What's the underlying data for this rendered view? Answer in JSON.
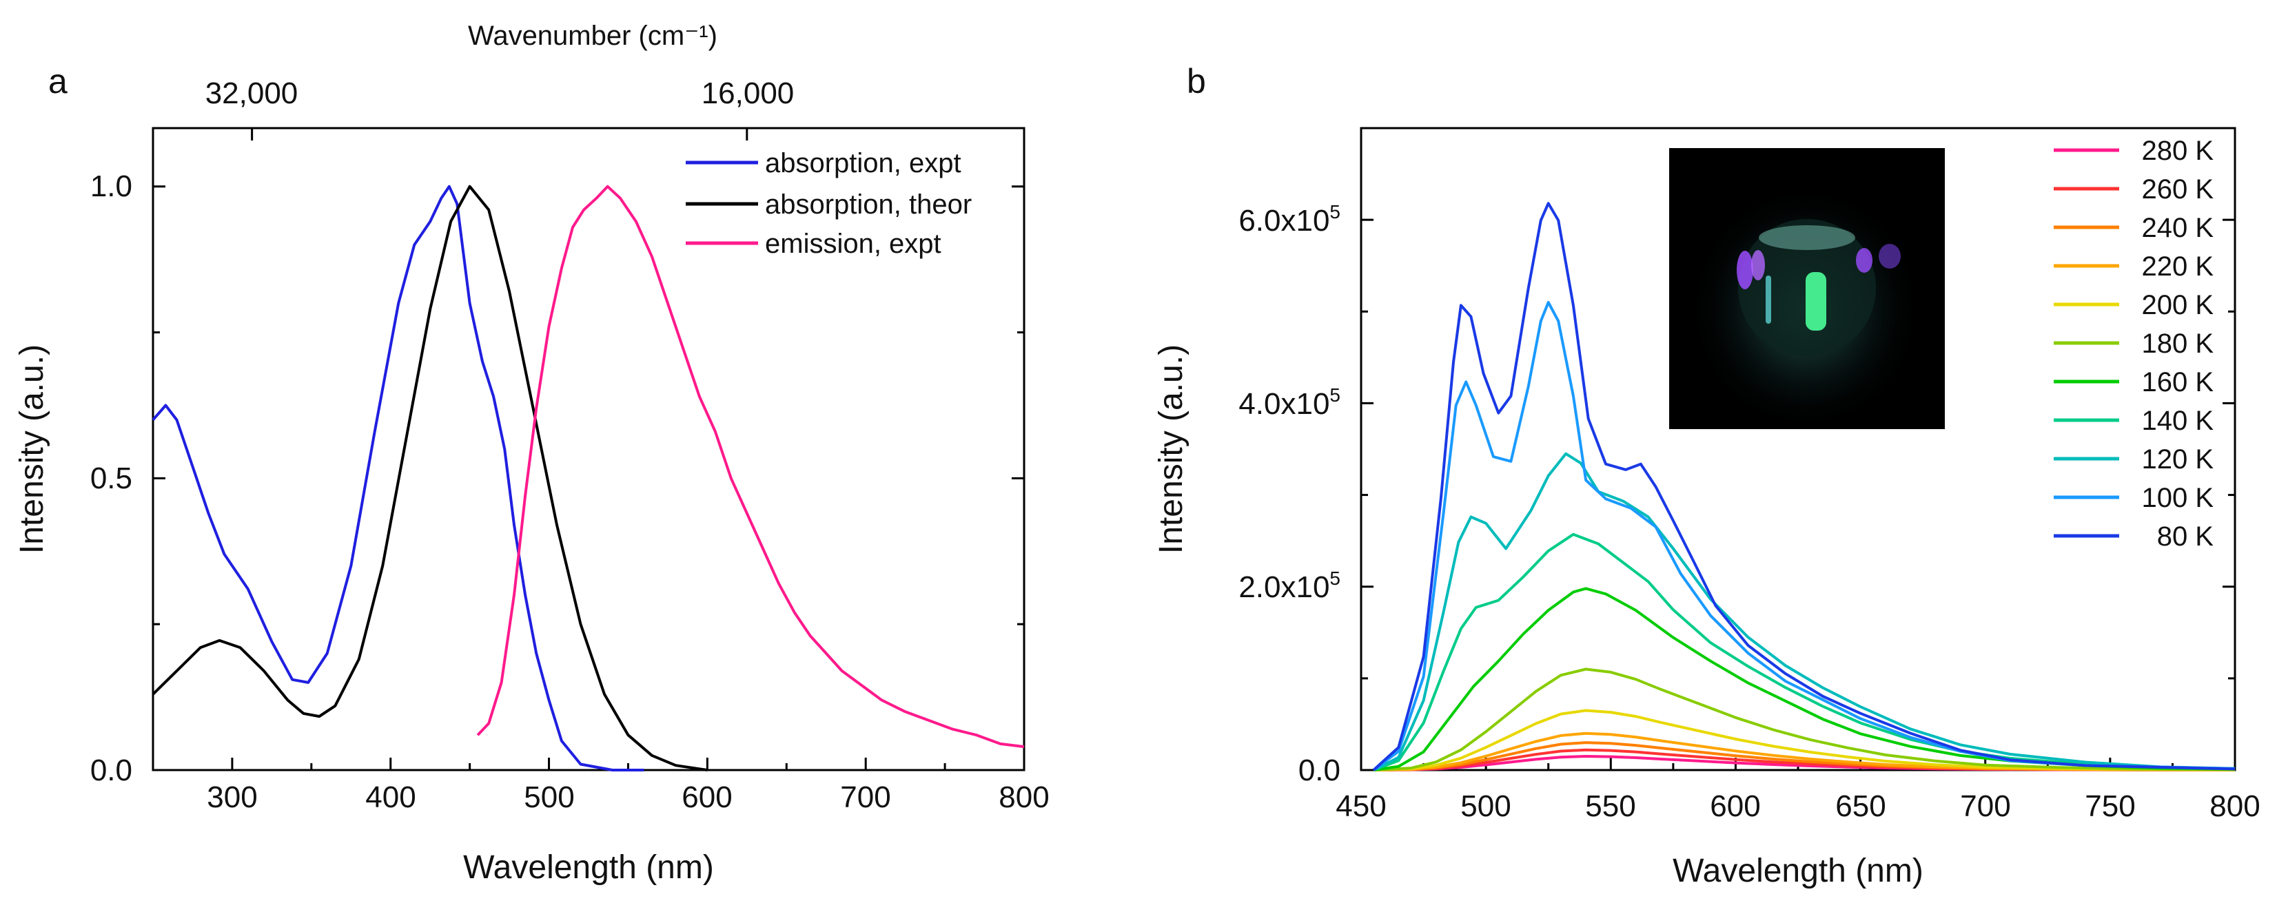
{
  "chart_data": [
    {
      "type": "line",
      "panel_label": "a",
      "xlabel": "Wavelength (nm)",
      "ylabel": "Intensity (a.u.)",
      "xlim": [
        250,
        800
      ],
      "ylim": [
        0,
        1.1
      ],
      "x_ticks": [
        300,
        400,
        500,
        600,
        700,
        800
      ],
      "x_tick_labels": [
        "300",
        "400",
        "500",
        "600",
        "700",
        "800"
      ],
      "y_ticks": [
        0,
        0.5,
        1.0
      ],
      "y_tick_labels": [
        "0.0",
        "0.5",
        "1.0"
      ],
      "top_axis": {
        "title": "Wavenumber (cm⁻¹)",
        "ticks": [
          {
            "label": "32,000",
            "at_wavelength": 312.5
          },
          {
            "label": "16,000",
            "at_wavelength": 625
          }
        ]
      },
      "legend_position": "top-right",
      "series": [
        {
          "name": "absorption, expt",
          "color": "#1f1fe0",
          "points": [
            [
              250,
              0.6
            ],
            [
              258,
              0.625
            ],
            [
              265,
              0.6
            ],
            [
              275,
              0.52
            ],
            [
              285,
              0.44
            ],
            [
              295,
              0.37
            ],
            [
              310,
              0.31
            ],
            [
              325,
              0.22
            ],
            [
              338,
              0.155
            ],
            [
              348,
              0.15
            ],
            [
              360,
              0.2
            ],
            [
              375,
              0.35
            ],
            [
              390,
              0.58
            ],
            [
              405,
              0.8
            ],
            [
              415,
              0.9
            ],
            [
              425,
              0.94
            ],
            [
              432,
              0.98
            ],
            [
              437,
              1.0
            ],
            [
              442,
              0.97
            ],
            [
              450,
              0.8
            ],
            [
              458,
              0.7
            ],
            [
              465,
              0.64
            ],
            [
              472,
              0.55
            ],
            [
              478,
              0.42
            ],
            [
              485,
              0.3
            ],
            [
              492,
              0.2
            ],
            [
              500,
              0.12
            ],
            [
              508,
              0.05
            ],
            [
              520,
              0.01
            ],
            [
              540,
              0.0
            ],
            [
              560,
              0.0
            ]
          ]
        },
        {
          "name": "absorption, theor",
          "color": "#000000",
          "points": [
            [
              250,
              0.13
            ],
            [
              265,
              0.17
            ],
            [
              280,
              0.21
            ],
            [
              292,
              0.222
            ],
            [
              305,
              0.21
            ],
            [
              320,
              0.17
            ],
            [
              335,
              0.12
            ],
            [
              345,
              0.097
            ],
            [
              355,
              0.092
            ],
            [
              365,
              0.11
            ],
            [
              380,
              0.19
            ],
            [
              395,
              0.35
            ],
            [
              410,
              0.57
            ],
            [
              425,
              0.79
            ],
            [
              438,
              0.94
            ],
            [
              450,
              1.0
            ],
            [
              462,
              0.96
            ],
            [
              475,
              0.82
            ],
            [
              490,
              0.62
            ],
            [
              505,
              0.42
            ],
            [
              520,
              0.25
            ],
            [
              535,
              0.13
            ],
            [
              550,
              0.06
            ],
            [
              565,
              0.025
            ],
            [
              580,
              0.008
            ],
            [
              600,
              0.0
            ]
          ]
        },
        {
          "name": "emission, expt",
          "color": "#ff1a8c",
          "points": [
            [
              455,
              0.06
            ],
            [
              462,
              0.08
            ],
            [
              470,
              0.15
            ],
            [
              478,
              0.3
            ],
            [
              485,
              0.47
            ],
            [
              492,
              0.62
            ],
            [
              500,
              0.76
            ],
            [
              508,
              0.86
            ],
            [
              515,
              0.93
            ],
            [
              522,
              0.96
            ],
            [
              530,
              0.98
            ],
            [
              537,
              1.0
            ],
            [
              545,
              0.98
            ],
            [
              555,
              0.94
            ],
            [
              565,
              0.88
            ],
            [
              575,
              0.8
            ],
            [
              585,
              0.72
            ],
            [
              595,
              0.64
            ],
            [
              605,
              0.58
            ],
            [
              615,
              0.5
            ],
            [
              625,
              0.44
            ],
            [
              635,
              0.38
            ],
            [
              645,
              0.32
            ],
            [
              655,
              0.27
            ],
            [
              665,
              0.23
            ],
            [
              675,
              0.2
            ],
            [
              685,
              0.17
            ],
            [
              695,
              0.15
            ],
            [
              710,
              0.12
            ],
            [
              725,
              0.1
            ],
            [
              740,
              0.085
            ],
            [
              755,
              0.07
            ],
            [
              770,
              0.06
            ],
            [
              785,
              0.045
            ],
            [
              800,
              0.04
            ]
          ]
        }
      ]
    },
    {
      "type": "line",
      "panel_label": "b",
      "xlabel": "Wavelength (nm)",
      "ylabel": "Intensity (a.u.)",
      "xlim": [
        450,
        800
      ],
      "ylim": [
        0,
        700000
      ],
      "x_ticks": [
        450,
        500,
        550,
        600,
        650,
        700,
        750,
        800
      ],
      "x_tick_labels": [
        "450",
        "500",
        "550",
        "600",
        "650",
        "700",
        "750",
        "800"
      ],
      "y_ticks": [
        0,
        200000,
        400000,
        600000
      ],
      "y_tick_labels": [
        {
          "mantissa": "0.0",
          "exp": ""
        },
        {
          "mantissa": "2.0x10",
          "exp": "5"
        },
        {
          "mantissa": "4.0x10",
          "exp": "5"
        },
        {
          "mantissa": "6.0x10",
          "exp": "5"
        }
      ],
      "inset": "photo of glowing sample",
      "legend_position": "top-right",
      "series": [
        {
          "name": "280 K",
          "color": "#ff1a8c",
          "profile": "broad",
          "peak": 15000
        },
        {
          "name": "260 K",
          "color": "#ff3333",
          "profile": "broad",
          "peak": 22000
        },
        {
          "name": "240 K",
          "color": "#ff8000",
          "profile": "broad",
          "peak": 30000
        },
        {
          "name": "220 K",
          "color": "#ffa500",
          "profile": "broad",
          "peak": 40000
        },
        {
          "name": "200 K",
          "color": "#e8d800",
          "profile": "broad",
          "peak": 65000
        },
        {
          "name": "180 K",
          "color": "#88cc00",
          "profile": "broad",
          "peak": 110000
        },
        {
          "name": "160 K",
          "color": "#00cc00",
          "profile": "t160",
          "peak": 198000
        },
        {
          "name": "140 K",
          "color": "#00cc88",
          "profile": "t140",
          "peak": 257000
        },
        {
          "name": "120 K",
          "color": "#00bbbb",
          "profile": "t120",
          "peak": 345000
        },
        {
          "name": "100 K",
          "color": "#1a9aff",
          "profile": "t100",
          "peak": 510000
        },
        {
          "name": "80 K",
          "color": "#1a3ae6",
          "profile": "t80",
          "peak": 618000
        }
      ],
      "profiles": {
        "broad": [
          [
            455,
            0
          ],
          [
            470,
            0.02
          ],
          [
            480,
            0.08
          ],
          [
            490,
            0.2
          ],
          [
            500,
            0.38
          ],
          [
            510,
            0.58
          ],
          [
            520,
            0.78
          ],
          [
            530,
            0.94
          ],
          [
            540,
            1.0
          ],
          [
            550,
            0.97
          ],
          [
            560,
            0.9
          ],
          [
            570,
            0.8
          ],
          [
            585,
            0.66
          ],
          [
            600,
            0.52
          ],
          [
            615,
            0.4
          ],
          [
            630,
            0.3
          ],
          [
            645,
            0.22
          ],
          [
            660,
            0.15
          ],
          [
            680,
            0.09
          ],
          [
            700,
            0.05
          ],
          [
            730,
            0.025
          ],
          [
            760,
            0.01
          ],
          [
            800,
            0.005
          ]
        ],
        "t160": [
          [
            455,
            0
          ],
          [
            465,
            0.02
          ],
          [
            475,
            0.1
          ],
          [
            485,
            0.28
          ],
          [
            495,
            0.46
          ],
          [
            505,
            0.6
          ],
          [
            515,
            0.75
          ],
          [
            525,
            0.88
          ],
          [
            535,
            0.98
          ],
          [
            540,
            1.0
          ],
          [
            548,
            0.97
          ],
          [
            560,
            0.88
          ],
          [
            575,
            0.73
          ],
          [
            590,
            0.6
          ],
          [
            605,
            0.48
          ],
          [
            620,
            0.38
          ],
          [
            635,
            0.28
          ],
          [
            650,
            0.2
          ],
          [
            670,
            0.13
          ],
          [
            690,
            0.08
          ],
          [
            710,
            0.05
          ],
          [
            740,
            0.025
          ],
          [
            770,
            0.01
          ],
          [
            800,
            0.005
          ]
        ],
        "t140": [
          [
            455,
            0
          ],
          [
            465,
            0.04
          ],
          [
            475,
            0.2
          ],
          [
            483,
            0.42
          ],
          [
            490,
            0.6
          ],
          [
            496,
            0.69
          ],
          [
            505,
            0.72
          ],
          [
            515,
            0.82
          ],
          [
            525,
            0.93
          ],
          [
            535,
            1.0
          ],
          [
            545,
            0.96
          ],
          [
            555,
            0.88
          ],
          [
            565,
            0.8
          ],
          [
            575,
            0.68
          ],
          [
            590,
            0.54
          ],
          [
            605,
            0.44
          ],
          [
            620,
            0.35
          ],
          [
            635,
            0.27
          ],
          [
            650,
            0.2
          ],
          [
            670,
            0.13
          ],
          [
            690,
            0.08
          ],
          [
            710,
            0.05
          ],
          [
            740,
            0.025
          ],
          [
            770,
            0.012
          ],
          [
            800,
            0.006
          ]
        ],
        "t120": [
          [
            455,
            0
          ],
          [
            465,
            0.04
          ],
          [
            475,
            0.22
          ],
          [
            483,
            0.5
          ],
          [
            489,
            0.72
          ],
          [
            494,
            0.8
          ],
          [
            500,
            0.78
          ],
          [
            508,
            0.7
          ],
          [
            518,
            0.82
          ],
          [
            525,
            0.93
          ],
          [
            532,
            1.0
          ],
          [
            538,
            0.97
          ],
          [
            545,
            0.88
          ],
          [
            555,
            0.85
          ],
          [
            565,
            0.8
          ],
          [
            575,
            0.7
          ],
          [
            590,
            0.54
          ],
          [
            605,
            0.42
          ],
          [
            620,
            0.33
          ],
          [
            635,
            0.26
          ],
          [
            650,
            0.2
          ],
          [
            670,
            0.13
          ],
          [
            690,
            0.08
          ],
          [
            710,
            0.05
          ],
          [
            740,
            0.025
          ],
          [
            770,
            0.01
          ],
          [
            800,
            0.005
          ]
        ],
        "t100": [
          [
            455,
            0
          ],
          [
            465,
            0.04
          ],
          [
            475,
            0.2
          ],
          [
            483,
            0.55
          ],
          [
            488,
            0.78
          ],
          [
            492,
            0.83
          ],
          [
            496,
            0.78
          ],
          [
            503,
            0.67
          ],
          [
            510,
            0.66
          ],
          [
            517,
            0.82
          ],
          [
            522,
            0.96
          ],
          [
            525,
            1.0
          ],
          [
            529,
            0.96
          ],
          [
            535,
            0.8
          ],
          [
            540,
            0.62
          ],
          [
            548,
            0.58
          ],
          [
            558,
            0.56
          ],
          [
            568,
            0.52
          ],
          [
            578,
            0.42
          ],
          [
            590,
            0.33
          ],
          [
            605,
            0.25
          ],
          [
            620,
            0.19
          ],
          [
            635,
            0.15
          ],
          [
            650,
            0.11
          ],
          [
            670,
            0.07
          ],
          [
            690,
            0.04
          ],
          [
            710,
            0.02
          ],
          [
            740,
            0.01
          ],
          [
            800,
            0.003
          ]
        ],
        "t80": [
          [
            455,
            0
          ],
          [
            465,
            0.04
          ],
          [
            475,
            0.2
          ],
          [
            482,
            0.48
          ],
          [
            487,
            0.72
          ],
          [
            490,
            0.82
          ],
          [
            494,
            0.8
          ],
          [
            499,
            0.7
          ],
          [
            505,
            0.63
          ],
          [
            510,
            0.66
          ],
          [
            517,
            0.85
          ],
          [
            522,
            0.97
          ],
          [
            525,
            1.0
          ],
          [
            529,
            0.97
          ],
          [
            535,
            0.82
          ],
          [
            541,
            0.62
          ],
          [
            548,
            0.54
          ],
          [
            556,
            0.53
          ],
          [
            562,
            0.54
          ],
          [
            568,
            0.5
          ],
          [
            575,
            0.44
          ],
          [
            583,
            0.37
          ],
          [
            592,
            0.29
          ],
          [
            605,
            0.22
          ],
          [
            620,
            0.17
          ],
          [
            635,
            0.13
          ],
          [
            650,
            0.1
          ],
          [
            670,
            0.065
          ],
          [
            690,
            0.035
          ],
          [
            710,
            0.018
          ],
          [
            740,
            0.008
          ],
          [
            800,
            0.002
          ]
        ]
      }
    }
  ]
}
